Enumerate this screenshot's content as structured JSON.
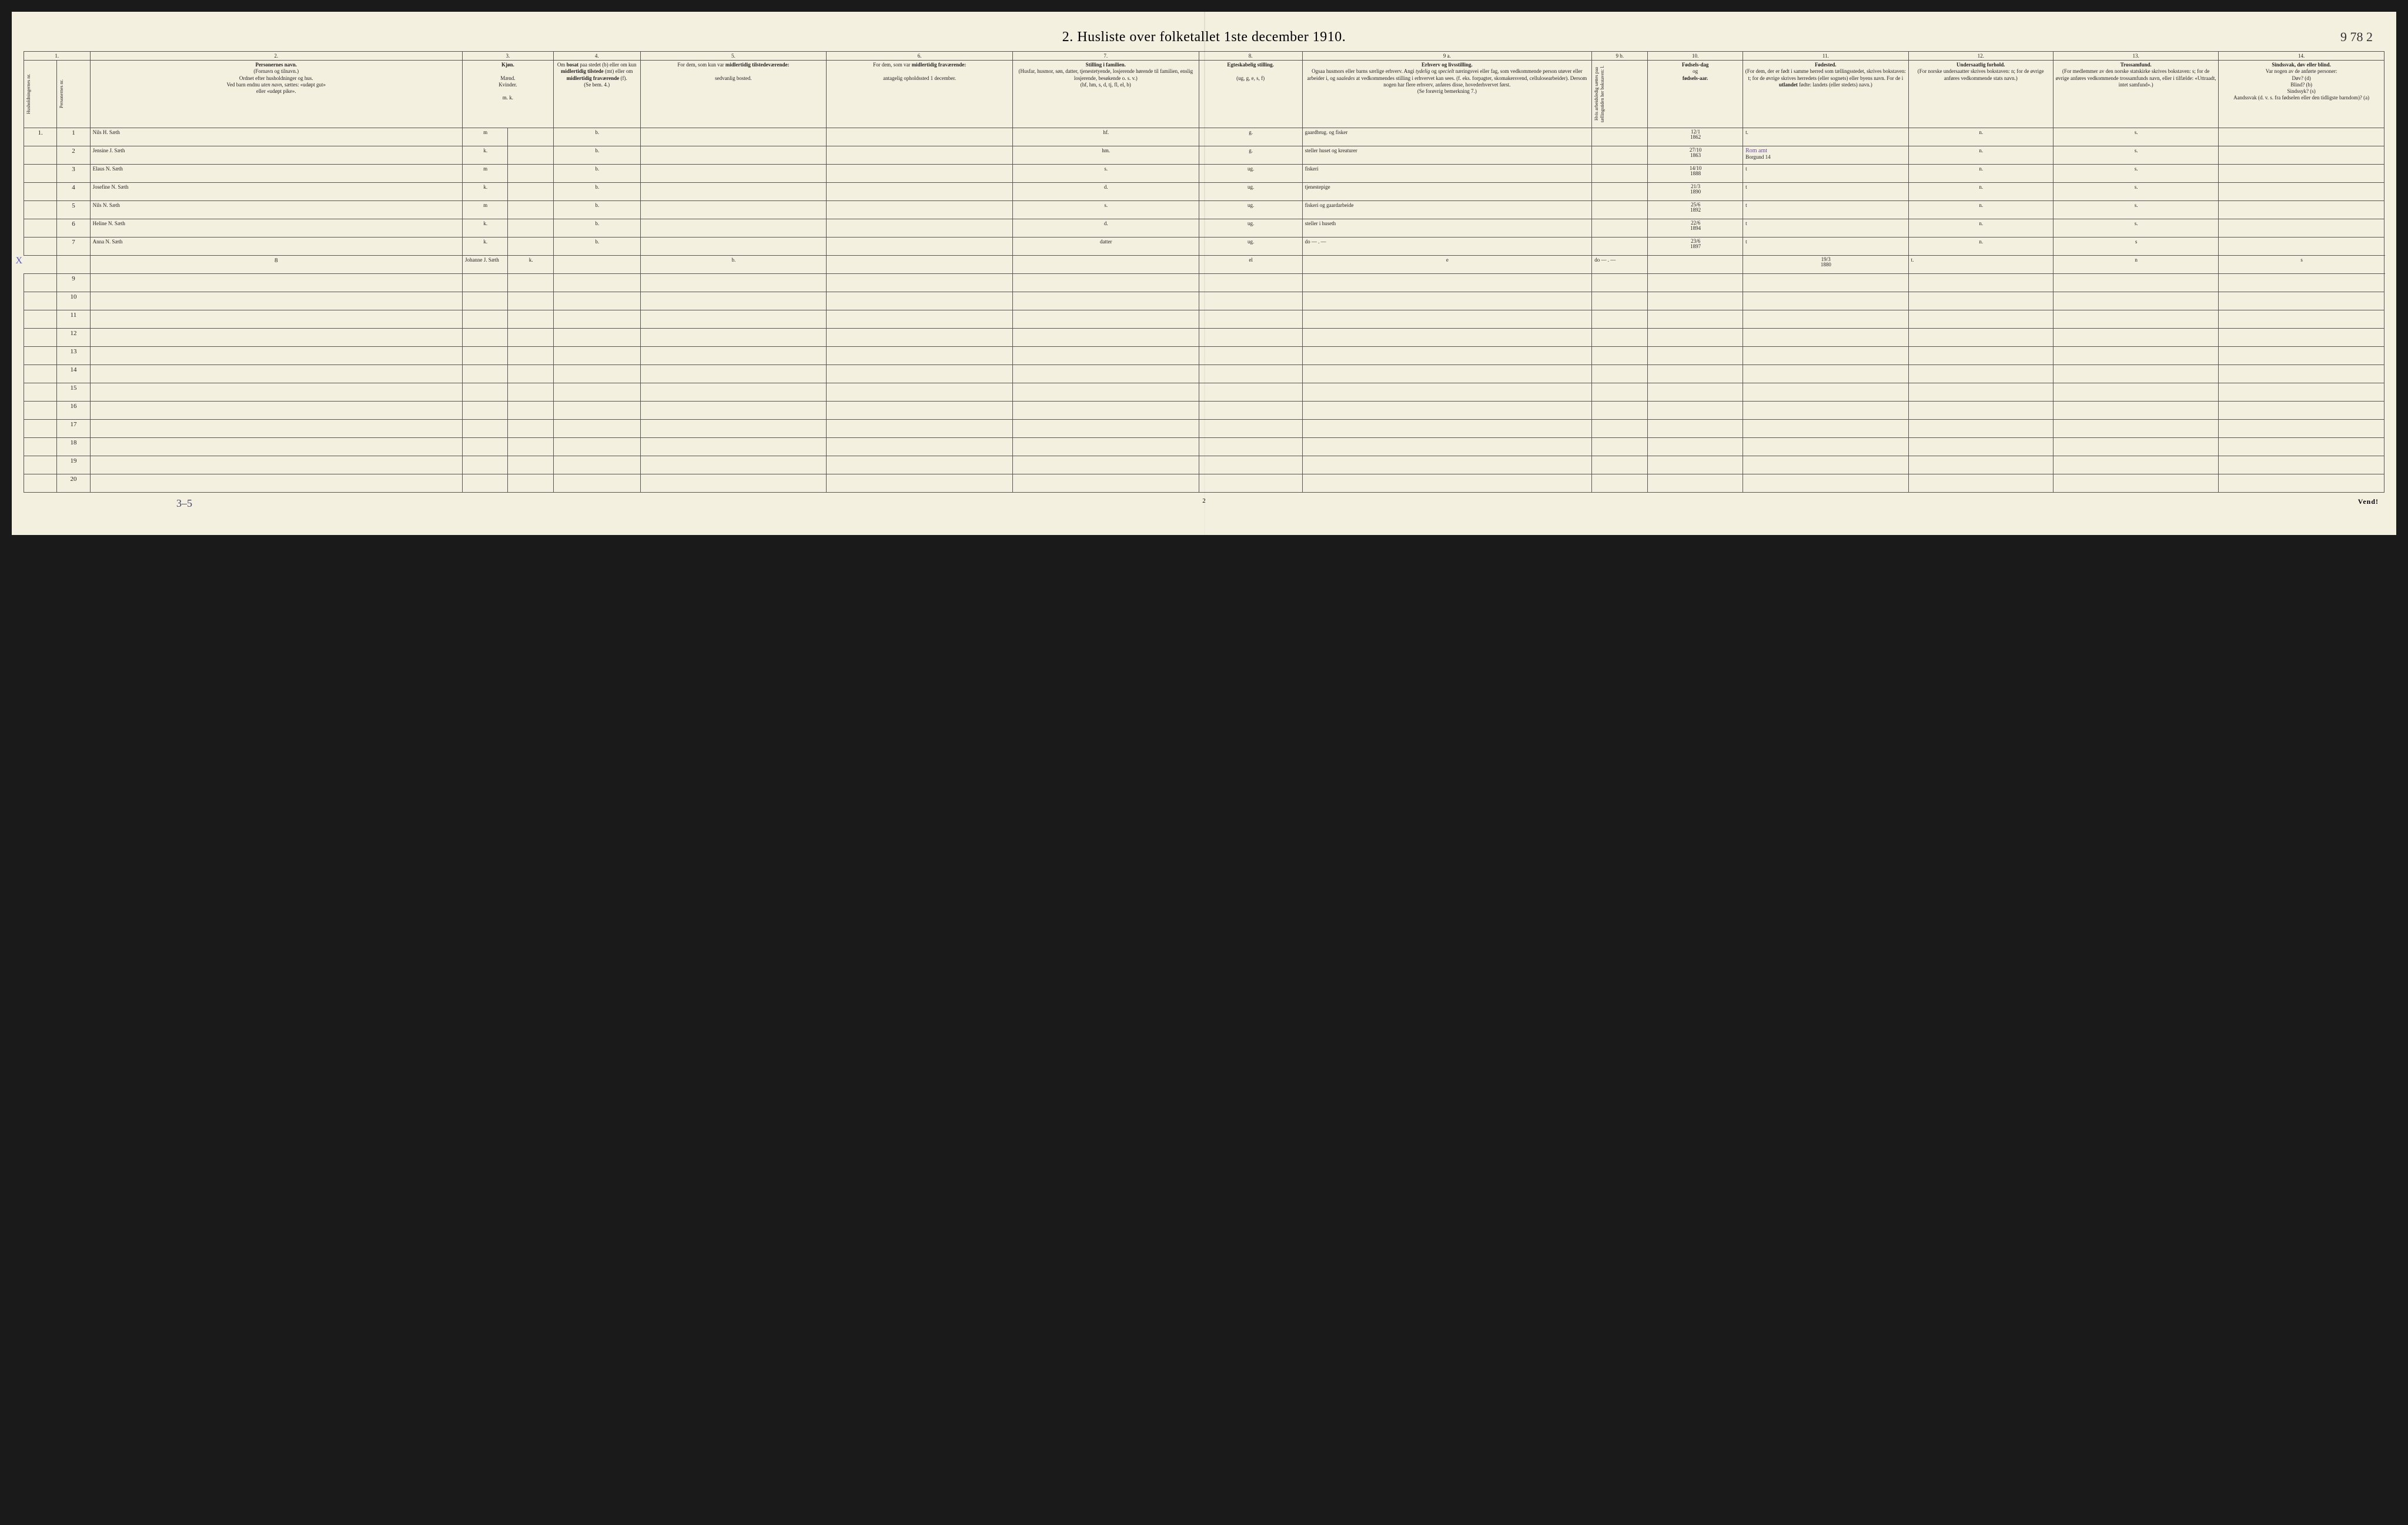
{
  "title": "2.  Husliste over folketallet 1ste december 1910.",
  "page_number_tr": "9 78 2",
  "footer": {
    "left_note": "3–5",
    "center_page": "2",
    "right": "Vend!"
  },
  "columns": {
    "nums": [
      "1.",
      "2.",
      "3.",
      "4.",
      "5.",
      "6.",
      "7.",
      "8.",
      "9 a.",
      "9 b.",
      "10.",
      "11.",
      "12.",
      "13.",
      "14."
    ],
    "widths_pct": [
      1.6,
      1.6,
      18,
      2.2,
      2.2,
      4.2,
      9,
      9,
      9,
      5,
      14,
      2.7,
      4.6,
      8,
      7,
      8,
      8
    ],
    "headers": {
      "c1": "Husholdningernes nr.",
      "c1b": "Personernes nr.",
      "c2": "<b>Personernes navn.</b><br>(Fornavn og tilnavn.)<br>Ordnet efter husholdninger og hus.<br>Ved barn endnu <i>uten navn</i>, sættes: «udøpt gut»<br>eller «udøpt pike».",
      "c3": "<b>Kjøn.</b><br><br>Mænd.<br>Kvinder.<br><br>m.  k.",
      "c4": "Om <b>bosat</b> paa stedet (b) eller om kun <b>midlertidig tilstede</b> (mt) eller om <b>midlertidig fraværende</b> (f).<br>(Se bem. 4.)",
      "c5": "For dem, som kun var <b>midlertidig tilstedeværende:</b><br><br>sedvanlig bosted.",
      "c6": "For dem, som var <b>midlertidig fraværende:</b><br><br>antagelig opholdssted 1 december.",
      "c7": "<b>Stilling i familien.</b><br>(Husfar, husmor, søn, datter, tjenestetyende, losjerende hørende til familien, enslig losjerende, besøkende o. s. v.)<br>(hf, hm, s, d, tj, fl, el, b)",
      "c8": "<b>Egteskabelig stilling.</b><br><br>(ug, g, e, s, f)",
      "c9a": "<b>Erhverv og livsstilling.</b><br>Ogsaa husmors eller barns særlige erhverv. Angi <i>tydelig</i> og <i>specielt</i> næringsvei eller fag, som vedkommende person utøver eller arbeider i, og <i>saaledes</i> at vedkommendes stilling i erhvervet kan sees. (f. eks. forpagter, skomakersvend, cellulosearbeider). Dersom nogen har flere erhverv, anføres disse, hovederhvervet først.<br>(Se forøvrig bemerkning 7.)",
      "c9b": "Hvis arbeidsledig sættes paa tællingstiden her bokstaven: l.",
      "c10": "<b>Fødsels-dag</b><br>og<br><b>fødsels-aar.</b>",
      "c11": "<b>Fødested.</b><br>(For dem, der er født i samme herred som tællingsstedet, skrives bokstaven: t; for de øvrige skrives herredets (eller sognets) eller byens navn. For de i <b>utlandet</b> fødte: landets (eller stedets) navn.)",
      "c12": "<b>Undersaatlig forhold.</b><br>(For norske undersaatter skrives bokstaven: n; for de øvrige anføres vedkommende stats navn.)",
      "c13": "<b>Trossamfund.</b><br>(For medlemmer av den norske statskirke skrives bokstaven: s; for de øvrige anføres vedkommende trossamfunds navn, eller i tilfælde: «Uttraadt, intet samfund».)",
      "c14": "<b>Sindssvak, døv eller blind.</b><br>Var nogen av de anførte personer:<br>Døv? (d)<br>Blind? (b)<br>Sindssyk? (s)<br>Aandssvak (d. v. s. fra fødselen eller den tidligste barndom)? (a)"
    }
  },
  "rows": [
    {
      "hh": "1.",
      "pn": "1",
      "name": "Nils H. Sæth",
      "sex": "m",
      "res": "b.",
      "c5": "",
      "c6": "",
      "fam": "hf.",
      "mar": "g.",
      "occ": "gaardbrug. og fisker",
      "dob_top": "12/1",
      "dob_bot": "1862",
      "birthplace": "t.",
      "nat": "n.",
      "rel": "s.",
      "c14": ""
    },
    {
      "hh": "",
      "pn": "2",
      "name": "Jensine J. Sæth",
      "sex": "k.",
      "res": "b.",
      "c5": "",
      "c6": "",
      "fam": "hm.",
      "mar": "g.",
      "occ": "steller huset og kreaturer",
      "dob_top": "27/10",
      "dob_bot": "1863",
      "birthplace": "Borgund 14",
      "birthplace_note": "Rom amt",
      "nat": "n.",
      "rel": "s.",
      "c14": ""
    },
    {
      "hh": "",
      "pn": "3",
      "name": "Elaus N. Sæth",
      "sex": "m",
      "res": "b.",
      "c5": "",
      "c6": "",
      "fam": "s.",
      "mar": "ug.",
      "occ": "fiskeri",
      "dob_top": "14/10",
      "dob_bot": "1888",
      "birthplace": "t",
      "nat": "n.",
      "rel": "s.",
      "c14": ""
    },
    {
      "hh": "",
      "pn": "4",
      "name": "Josefine N. Sæth",
      "sex": "k.",
      "res": "b.",
      "c5": "",
      "c6": "",
      "fam": "d.",
      "mar": "ug.",
      "occ": "tjenestepige",
      "dob_top": "21/3",
      "dob_bot": "1890",
      "birthplace": "t",
      "nat": "n.",
      "rel": "s.",
      "c14": ""
    },
    {
      "hh": "",
      "pn": "5",
      "name": "Nils N. Sæth",
      "sex": "m",
      "res": "b.",
      "c5": "",
      "c6": "",
      "fam": "s.",
      "mar": "ug.",
      "occ": "fiskeri og gaardarbeide",
      "dob_top": "25/6",
      "dob_bot": "1892",
      "birthplace": "t",
      "nat": "n.",
      "rel": "s.",
      "c14": ""
    },
    {
      "hh": "",
      "pn": "6",
      "name": "Heline N. Sæth",
      "sex": "k.",
      "res": "b.",
      "c5": "",
      "c6": "",
      "fam": "d.",
      "mar": "ug.",
      "occ": "steller i huseth",
      "dob_top": "22/6",
      "dob_bot": "1894",
      "birthplace": "t",
      "nat": "n.",
      "rel": "s.",
      "c14": ""
    },
    {
      "hh": "",
      "pn": "7",
      "name": "Anna N. Sæth",
      "sex": "k.",
      "res": "b.",
      "c5": "",
      "c6": "",
      "fam": "datter",
      "mar": "ug.",
      "occ": "do   —  . —",
      "dob_top": "23/6",
      "dob_bot": "1897",
      "birthplace": "t",
      "nat": "n.",
      "rel": "s",
      "c14": ""
    },
    {
      "hh": "",
      "pn": "8",
      "name": "Johanne J. Sæth",
      "sex": "k.",
      "res": "b.",
      "c5": "",
      "c6": "",
      "fam": "el",
      "mar": "e",
      "occ": "do   —  . —",
      "dob_top": "19/3",
      "dob_bot": "1880",
      "birthplace": "t.",
      "nat": "n",
      "rel": "s",
      "c14": "",
      "mark_x": true
    }
  ],
  "blank_rows": [
    9,
    10,
    11,
    12,
    13,
    14,
    15,
    16,
    17,
    18,
    19,
    20
  ],
  "colors": {
    "paper": "#f4f0e0",
    "ink": "#2a2a3a",
    "rule": "#555555",
    "purple_ink": "#6a4aa0",
    "background": "#1a1a1a"
  }
}
